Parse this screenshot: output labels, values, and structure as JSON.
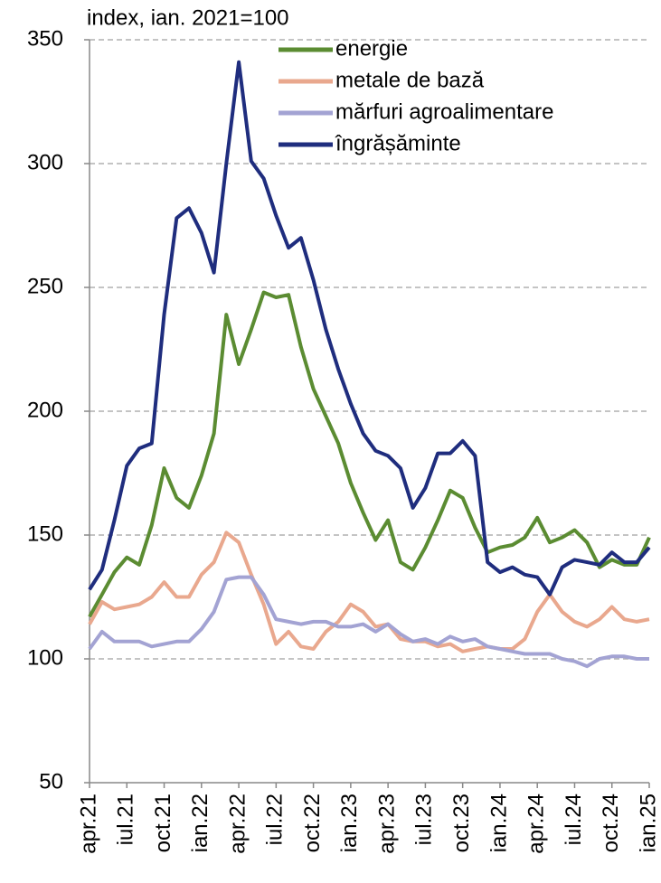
{
  "chart_data": {
    "type": "line",
    "y_axis_label": "index, ian. 2021=100",
    "categories": [
      "apr.21",
      null,
      null,
      "iul.21",
      null,
      null,
      "oct.21",
      null,
      null,
      "ian.22",
      null,
      null,
      "apr.22",
      null,
      null,
      "iul.22",
      null,
      null,
      "oct.22",
      null,
      null,
      "ian.23",
      null,
      null,
      "apr.23",
      null,
      null,
      "iul.23",
      null,
      null,
      "oct.23",
      null,
      null,
      "ian.24",
      null,
      null,
      "apr.24",
      null,
      null,
      "iul.24",
      null,
      null,
      "oct.24",
      null,
      null,
      "ian.25"
    ],
    "series": [
      {
        "name": "energie",
        "color": "#5b8c32",
        "values": [
          117,
          126,
          135,
          141,
          138,
          154,
          177,
          165,
          161,
          174,
          191,
          239,
          219,
          233,
          248,
          246,
          247,
          226,
          209,
          198,
          187,
          171,
          159,
          148,
          156,
          139,
          136,
          145,
          156,
          168,
          165,
          153,
          143,
          145,
          146,
          149,
          157,
          147,
          149,
          152,
          147,
          137,
          140,
          138,
          138,
          149
        ]
      },
      {
        "name": "metale de bază",
        "color": "#e9a88e",
        "values": [
          114,
          123,
          120,
          121,
          122,
          125,
          131,
          125,
          125,
          134,
          139,
          151,
          147,
          134,
          122,
          106,
          111,
          105,
          104,
          111,
          115,
          122,
          119,
          113,
          114,
          108,
          107,
          107,
          105,
          106,
          103,
          104,
          105,
          104,
          104,
          108,
          119,
          126,
          119,
          115,
          113,
          116,
          121,
          116,
          115,
          116
        ]
      },
      {
        "name": "mărfuri agroalimentare",
        "color": "#a3a3d3",
        "values": [
          104,
          111,
          107,
          107,
          107,
          105,
          106,
          107,
          107,
          112,
          119,
          132,
          133,
          133,
          126,
          116,
          115,
          114,
          115,
          115,
          113,
          113,
          114,
          111,
          114,
          110,
          107,
          108,
          106,
          109,
          107,
          108,
          105,
          104,
          103,
          102,
          102,
          102,
          100,
          99,
          97,
          100,
          101,
          101,
          100,
          100
        ]
      },
      {
        "name": "îngrășăminte",
        "color": "#1f2d7e",
        "values": [
          128,
          136,
          156,
          178,
          185,
          187,
          239,
          278,
          282,
          272,
          256,
          300,
          341,
          301,
          294,
          279,
          266,
          270,
          253,
          233,
          217,
          203,
          191,
          184,
          182,
          177,
          161,
          169,
          183,
          183,
          188,
          182,
          139,
          135,
          137,
          134,
          133,
          126,
          137,
          140,
          139,
          138,
          143,
          139,
          139,
          145
        ]
      }
    ],
    "ylim": [
      50,
      350
    ],
    "yticks": [
      50,
      100,
      150,
      200,
      250,
      300,
      350
    ],
    "grid": true
  }
}
